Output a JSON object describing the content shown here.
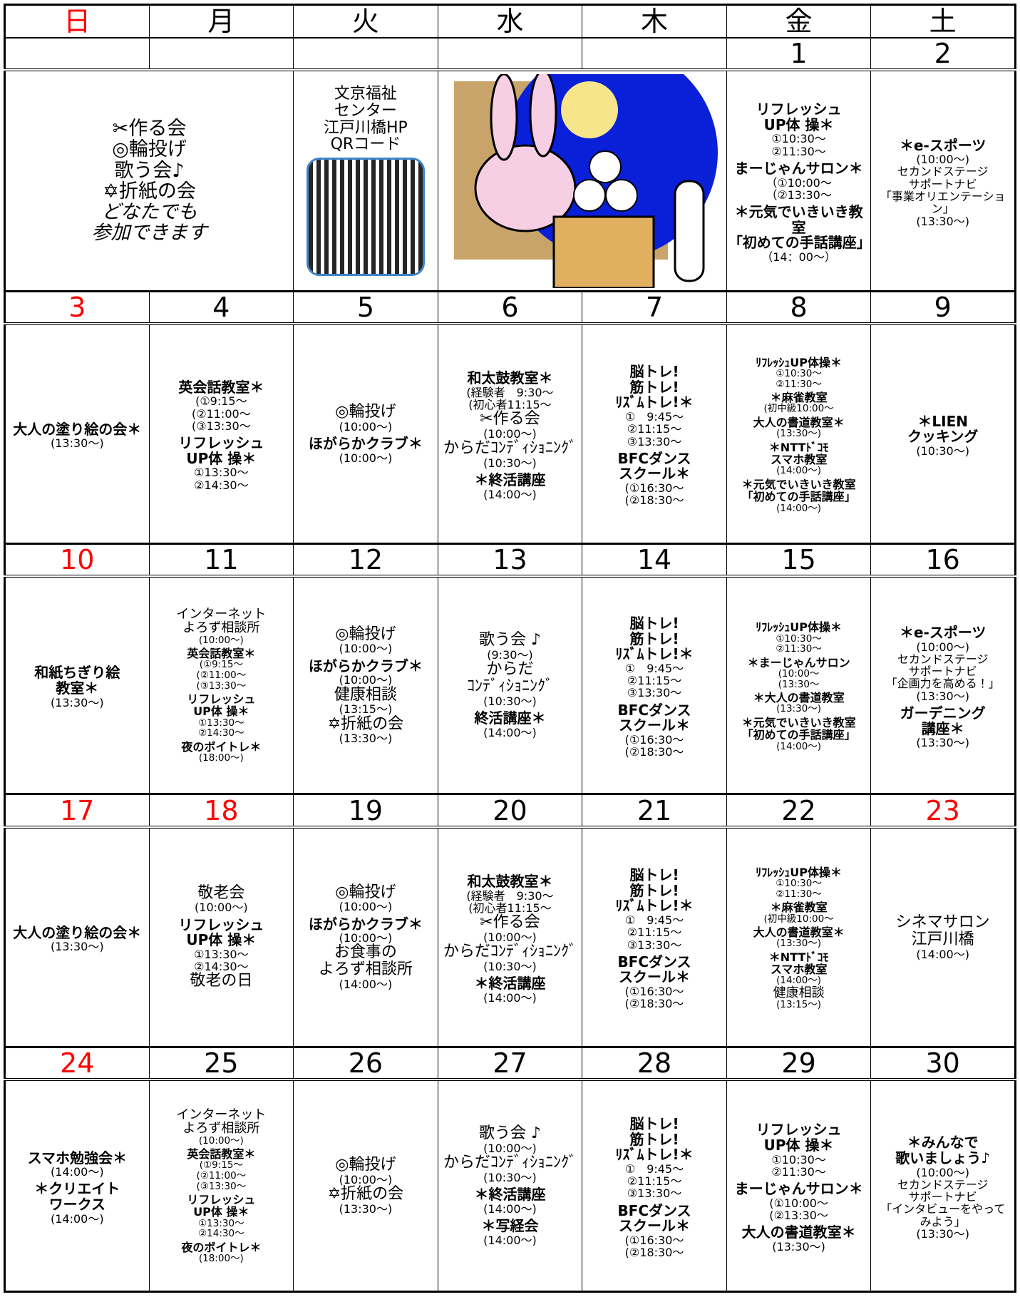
{
  "weekdays": [
    "日",
    "月",
    "火",
    "水",
    "木",
    "金",
    "土"
  ],
  "weeks": [
    {
      "dates": [
        null,
        null,
        null,
        null,
        null,
        "1",
        "2"
      ],
      "cells": [
        [
          "✂作る会",
          "◎輪投げ",
          "歌う会♪",
          "✡折紙の会",
          "どなたでも",
          "参加できます"
        ],
        [
          "文京福祉",
          "センター",
          "江戸川橋HP",
          "QRコード"
        ],
        [],
        [
          "リフレッシュ\nUP体 操＊",
          "①10:30～",
          "②11:30～",
          "まーじゃんサロン＊",
          "（①10:00～",
          "（②13:30～",
          "＊元気でいきいき教室\n「初めての手話講座」",
          "（14：00～）"
        ],
        [
          "＊e-スポーツ",
          "(10:00～)",
          "セカンドステージ\nサポートナビ\n「事業オリエンテーション」",
          "(13:30～)"
        ]
      ]
    },
    {
      "dates": [
        "3",
        "4",
        "5",
        "6",
        "7",
        "8",
        "9"
      ],
      "cells": [
        [
          "大人の塗り絵の会＊",
          "(13:30～)"
        ],
        [
          "英会話教室＊",
          "(①9:15～",
          "(②11:00～",
          "(③13:30～",
          "リフレッシュ\nUP体 操＊",
          "①13:30～",
          "②14:30～"
        ],
        [
          "◎輪投げ",
          "(10:00～)",
          "ほがらかクラブ＊",
          "(10:00～)"
        ],
        [
          "和太鼓教室＊",
          "(経験者　9:30～",
          "(初心者11:15～",
          "✂作る会",
          "(10:00～)",
          "からだｺﾝﾃﾞｨｼｮﾆﾝｸﾞ",
          "(10:30～)",
          "＊終活講座",
          "(14:00～)"
        ],
        [
          "脳トレ!\n筋トレ!\nﾘｽﾞﾑトレ!＊",
          "①　9:45～",
          "②11:15～",
          "③13:30～",
          "BFCダンス\nスクール＊",
          "(①16:30～",
          "(②18:30～"
        ],
        [
          "ﾘﾌﾚｯｼｭUP体操＊",
          "①10:30～",
          "②11:30～",
          "＊麻雀教室",
          "(初中級10:00～",
          "大人の書道教室＊",
          "(13:30～)",
          "＊NTTﾄﾞｺﾓ\nスマホ教室",
          "(14:00～)",
          "＊元気でいきいき教室\n「初めての手話講座」",
          "(14:00～)"
        ],
        [
          "＊LIEN\nクッキング",
          "(10:30～)"
        ]
      ]
    },
    {
      "dates": [
        "10",
        "11",
        "12",
        "13",
        "14",
        "15",
        "16"
      ],
      "cells": [
        [
          "和紙ちぎり絵\n教室＊",
          "(13:30～)"
        ],
        [
          "インターネット\nよろず相談所",
          "(10:00～)",
          "英会話教室＊",
          "(①9:15～",
          "(②11:00～",
          "(③13:30～",
          "リフレッシュ\nUP体 操＊",
          "①13:30～",
          "②14:30～",
          "夜のボイトレ＊",
          "(18:00～)"
        ],
        [
          "◎輪投げ",
          "(10:00～)",
          "ほがらかクラブ＊",
          "(10:00～)",
          "健康相談",
          "(13:15～)",
          "✡折紙の会",
          "(13:30～)"
        ],
        [
          "歌う会 ♪",
          "(9:30～)",
          "からだ\nｺﾝﾃﾞｨｼｮﾆﾝｸﾞ",
          "(10:30～)",
          "終活講座＊",
          "(14:00～)"
        ],
        [
          "脳トレ!\n筋トレ!\nﾘｽﾞﾑトレ!＊",
          "①　9:45～",
          "②11:15～",
          "③13:30～",
          "BFCダンス\nスクール＊",
          "(①16:30～",
          "(②18:30～"
        ],
        [
          "ﾘﾌﾚｯｼｭUP体操＊",
          "①10:30～",
          "②11:30～",
          "＊まーじゃんサロン",
          "(10:00～",
          "(13:30～",
          "＊大人の書道教室",
          "(13:30～)",
          "＊元気でいきいき教室\n「初めての手話講座」",
          "(14:00～)"
        ],
        [
          "＊e-スポーツ",
          "(10:00～)",
          "セカンドステージ\nサポートナビ\n「企画力を高める！」",
          "(13:30～)",
          "ガーデニング\n講座＊",
          "(13:30～)"
        ]
      ]
    },
    {
      "dates": [
        "17",
        "18",
        "19",
        "20",
        "21",
        "22",
        "23"
      ],
      "cells": [
        [
          "大人の塗り絵の会＊",
          "(13:30～)"
        ],
        [
          "敬老会",
          "(10:00～)",
          "リフレッシュ\nUP体 操＊",
          "①13:30～",
          "②14:30～",
          "敬老の日"
        ],
        [
          "◎輪投げ",
          "(10:00～)",
          "ほがらかクラブ＊",
          "(10:00～)",
          "お食事の\nよろず相談所",
          "(14:00～)"
        ],
        [
          "和太鼓教室＊",
          "(経験者　9:30～",
          "(初心者11:15～",
          "✂作る会",
          "(10:00～)",
          "からだｺﾝﾃﾞｨｼｮﾆﾝｸﾞ",
          "(10:30～)",
          "＊終活講座",
          "(14:00～)"
        ],
        [
          "脳トレ!\n筋トレ!\nﾘｽﾞﾑトレ!＊",
          "①　9:45～",
          "②11:15～",
          "③13:30～",
          "BFCダンス\nスクール＊",
          "(①16:30～",
          "(②18:30～"
        ],
        [
          "ﾘﾌﾚｯｼｭUP体操＊",
          "①10:30～",
          "②11:30～",
          "＊麻雀教室",
          "(初中級10:00～",
          "大人の書道教室＊",
          "(13:30～)",
          "＊NTTﾄﾞｺﾓ\nスマホ教室",
          "(14:00～)",
          "健康相談",
          "(13:15～)"
        ],
        [
          "シネマサロン\n江戸川橋",
          "(14:00～)"
        ]
      ]
    },
    {
      "dates": [
        "24",
        "25",
        "26",
        "27",
        "28",
        "29",
        "30"
      ],
      "cells": [
        [
          "スマホ勉強会＊",
          "(14:00～)",
          "＊クリエイト\nワークス",
          "(14:00～)"
        ],
        [
          "インターネット\nよろず相談所",
          "(10:00～)",
          "英会話教室＊",
          "(①9:15～",
          "(②11:00～",
          "(③13:30～",
          "リフレッシュ\nUP体 操＊",
          "①13:30～",
          "②14:30～",
          "夜のボイトレ＊",
          "(18:00～)"
        ],
        [
          "◎輪投げ",
          "(10:00～)",
          "✡折紙の会",
          "(13:30～)"
        ],
        [
          "歌う会 ♪",
          "(10:00～)",
          "からだｺﾝﾃﾞｨｼｮﾆﾝｸﾞ",
          "(10:30～)",
          "＊終活講座",
          "(14:00～)",
          "＊写経会",
          "(14:00～)"
        ],
        [
          "脳トレ!\n筋トレ!\nﾘｽﾞﾑトレ!＊",
          "①　9:45～",
          "②11:15～",
          "③13:30～",
          "BFCダンス\nスクール＊",
          "(①16:30～",
          "(②18:30～"
        ],
        [
          "リフレッシュ\nUP体 操＊",
          "①10:30～",
          "②11:30～",
          "まーじゃんサロン＊",
          "(①10:00～",
          "(②13:30～",
          "大人の書道教室＊",
          "(13:30～)"
        ],
        [
          "＊みんなで\n歌いましょう♪",
          "(10:00～)",
          "セカンドステージ\nサポートナビ\n「インタビューをやって\nみよう」",
          "(13:30～)"
        ]
      ]
    }
  ]
}
